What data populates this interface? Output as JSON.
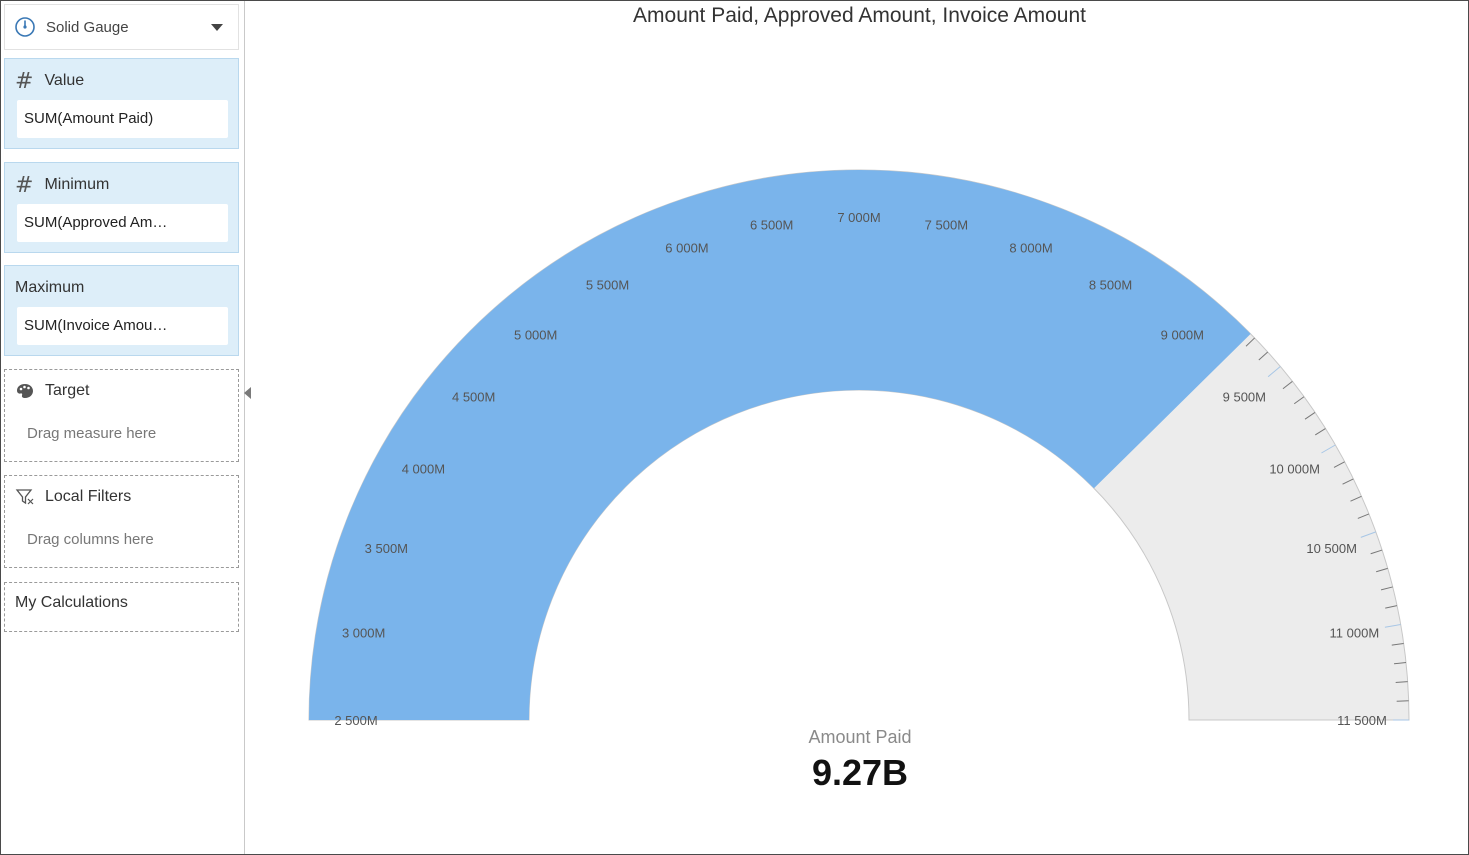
{
  "sidebar": {
    "chart_type": {
      "label": "Solid Gauge",
      "icon": "gauge-icon"
    },
    "value": {
      "title": "Value",
      "field": "SUM(Amount Paid)"
    },
    "minimum": {
      "title": "Minimum",
      "field": "SUM(Approved Am…"
    },
    "maximum": {
      "title": "Maximum",
      "field": "SUM(Invoice Amou…"
    },
    "target": {
      "title": "Target",
      "hint": "Drag measure here"
    },
    "local_filters": {
      "title": "Local Filters",
      "hint": "Drag columns here"
    },
    "my_calculations": {
      "title": "My Calculations"
    }
  },
  "colors": {
    "gauge_fill": "#7ab4eb",
    "gauge_track": "#ececec",
    "panel_bg": "#ddeef9"
  },
  "chart_data": {
    "type": "solid-gauge",
    "title": "Amount Paid, Approved Amount, Invoice Amount",
    "min": 2500,
    "max": 11500,
    "value": 9270,
    "tick_labels": [
      "2 500M",
      "3 000M",
      "3 500M",
      "4 000M",
      "4 500M",
      "5 000M",
      "5 500M",
      "6 000M",
      "6 500M",
      "7 000M",
      "7 500M",
      "8 000M",
      "8 500M",
      "9 000M",
      "9 500M",
      "10 000M",
      "10 500M",
      "11 000M",
      "11 500M"
    ],
    "tick_values": [
      2500,
      3000,
      3500,
      4000,
      4500,
      5000,
      5500,
      6000,
      6500,
      7000,
      7500,
      8000,
      8500,
      9000,
      9500,
      10000,
      10500,
      11000,
      11500
    ],
    "value_label": "Amount Paid",
    "value_display": "9.27B"
  }
}
